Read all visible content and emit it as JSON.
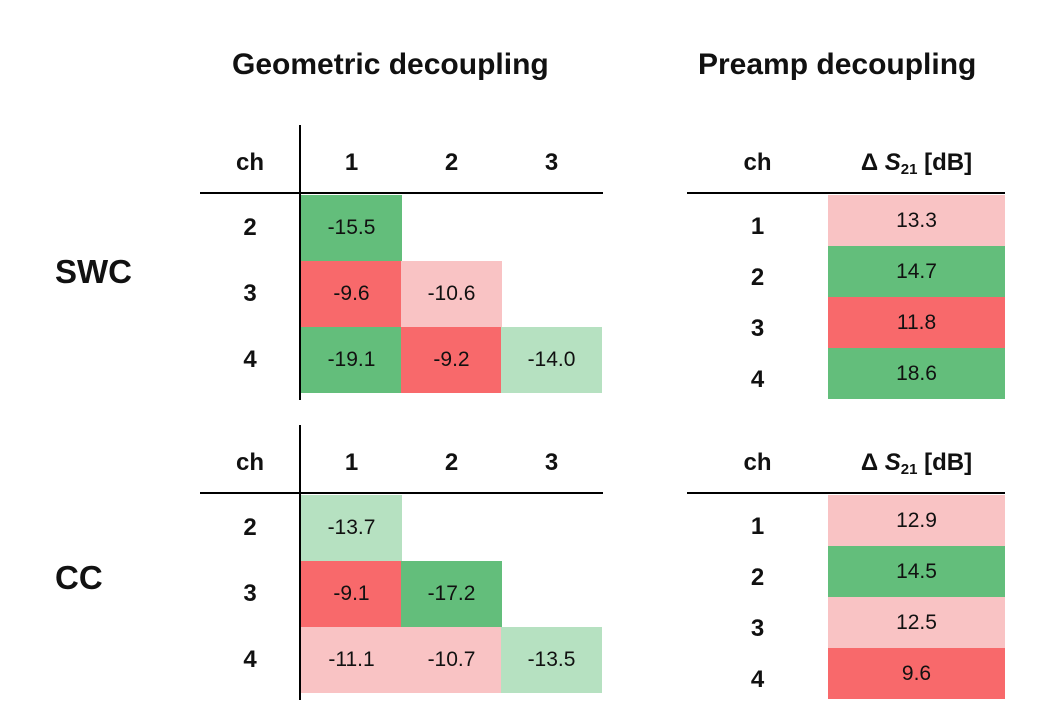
{
  "colors": {
    "good": "#63be7b",
    "bad": "#f8696b",
    "mid_bad": "#f9c3c4",
    "mid_good": "#b6e1c1"
  },
  "titles": {
    "geometric": "Geometric decoupling",
    "preamp": "Preamp decoupling"
  },
  "headers": {
    "ch": "ch",
    "cols": [
      "1",
      "2",
      "3"
    ],
    "delta_prefix": "Δ ",
    "delta_var": "S",
    "delta_sub": "21",
    "delta_unit": " [dB]"
  },
  "chart_data": [
    {
      "type": "table",
      "group": "SWC",
      "geometric": {
        "rows": [
          "2",
          "3",
          "4"
        ],
        "cols": [
          "1",
          "2",
          "3"
        ],
        "cells": [
          [
            {
              "v": "-15.5",
              "c": "good"
            },
            null,
            null
          ],
          [
            {
              "v": "-9.6",
              "c": "bad"
            },
            {
              "v": "-10.6",
              "c": "mid_bad"
            },
            null
          ],
          [
            {
              "v": "-19.1",
              "c": "good"
            },
            {
              "v": "-9.2",
              "c": "bad"
            },
            {
              "v": "-14.0",
              "c": "mid_good"
            }
          ]
        ]
      },
      "preamp": {
        "rows": [
          "1",
          "2",
          "3",
          "4"
        ],
        "values": [
          {
            "v": "13.3",
            "c": "mid_bad"
          },
          {
            "v": "14.7",
            "c": "good"
          },
          {
            "v": "11.8",
            "c": "bad"
          },
          {
            "v": "18.6",
            "c": "good"
          }
        ]
      }
    },
    {
      "type": "table",
      "group": "CC",
      "geometric": {
        "rows": [
          "2",
          "3",
          "4"
        ],
        "cols": [
          "1",
          "2",
          "3"
        ],
        "cells": [
          [
            {
              "v": "-13.7",
              "c": "mid_good"
            },
            null,
            null
          ],
          [
            {
              "v": "-9.1",
              "c": "bad"
            },
            {
              "v": "-17.2",
              "c": "good"
            },
            null
          ],
          [
            {
              "v": "-11.1",
              "c": "mid_bad"
            },
            {
              "v": "-10.7",
              "c": "mid_bad"
            },
            {
              "v": "-13.5",
              "c": "mid_good"
            }
          ]
        ]
      },
      "preamp": {
        "rows": [
          "1",
          "2",
          "3",
          "4"
        ],
        "values": [
          {
            "v": "12.9",
            "c": "mid_bad"
          },
          {
            "v": "14.5",
            "c": "good"
          },
          {
            "v": "12.5",
            "c": "mid_bad"
          },
          {
            "v": "9.6",
            "c": "bad"
          }
        ]
      }
    }
  ]
}
